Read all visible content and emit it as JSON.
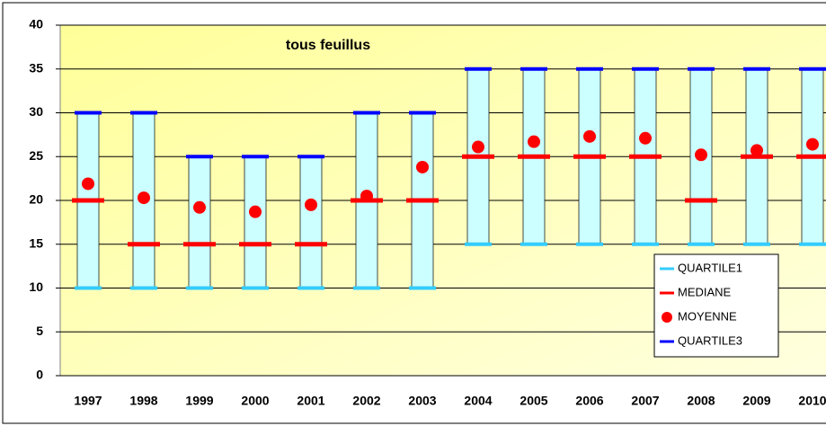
{
  "chart_data": {
    "type": "box",
    "title": "tous feuillus",
    "categories": [
      "1997",
      "1998",
      "1999",
      "2000",
      "2001",
      "2002",
      "2003",
      "2004",
      "2005",
      "2006",
      "2007",
      "2008",
      "2009",
      "2010"
    ],
    "series": [
      {
        "name": "QUARTILE1",
        "color": "#33ccff",
        "values": [
          10,
          10,
          10,
          10,
          10,
          10,
          10,
          15,
          15,
          15,
          15,
          15,
          15,
          15
        ]
      },
      {
        "name": "MEDIANE",
        "color": "#ff0000",
        "values": [
          20,
          15,
          15,
          15,
          15,
          20,
          20,
          25,
          25,
          25,
          25,
          20,
          25,
          25
        ]
      },
      {
        "name": "MOYENNE",
        "color": "#ff0000",
        "values": [
          21.9,
          20.3,
          19.2,
          18.7,
          19.5,
          20.5,
          23.8,
          26.1,
          26.7,
          27.3,
          27.1,
          25.2,
          25.7,
          26.4
        ]
      },
      {
        "name": "QUARTILE3",
        "color": "#0000ff",
        "values": [
          30,
          30,
          25,
          25,
          25,
          30,
          30,
          35,
          35,
          35,
          35,
          35,
          35,
          35
        ]
      }
    ],
    "box_color": "#ccffff",
    "ylim": [
      0,
      40
    ],
    "yticks": [
      0,
      5,
      10,
      15,
      20,
      25,
      30,
      35,
      40
    ],
    "grid": true,
    "legend": "lower right"
  }
}
